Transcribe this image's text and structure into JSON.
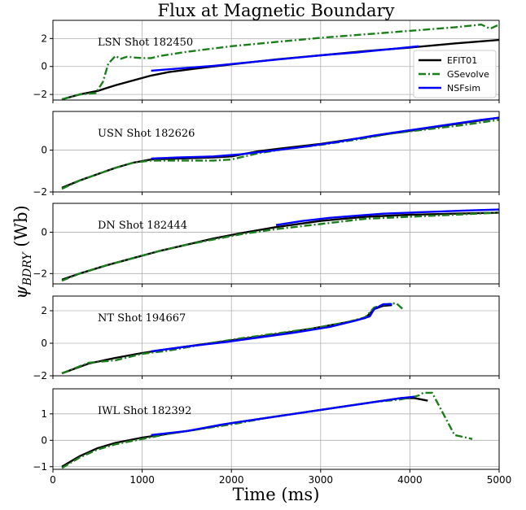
{
  "figure": {
    "title": "Flux at Magnetic Boundary",
    "xlabel": "Time (ms)",
    "ylabel_main": "ψ",
    "ylabel_sub": "BDRY",
    "ylabel_unit": " (Wb)"
  },
  "legend": {
    "placement": "top-right of first panel",
    "entries": [
      {
        "name": "EFIT01",
        "color": "#000000",
        "style": "solid"
      },
      {
        "name": "GSevolve",
        "color": "#1a7f1a",
        "style": "dashdot"
      },
      {
        "name": "NSFsim",
        "color": "#0000ff",
        "style": "solid"
      }
    ]
  },
  "chart_data": [
    {
      "type": "line",
      "label": "LSN Shot 182450",
      "xlim": [
        0,
        5000
      ],
      "ylim": [
        -2.4,
        3.3
      ],
      "yticks": [
        -2,
        0,
        2
      ],
      "xticks": [
        0,
        1000,
        2000,
        3000,
        4000,
        5000
      ],
      "grid": true,
      "series": [
        {
          "name": "EFIT01",
          "x": [
            100,
            300,
            500,
            700,
            900,
            1100,
            1300,
            1600,
            2000,
            2500,
            3000,
            3500,
            4000,
            4500,
            5000
          ],
          "y": [
            -2.35,
            -2.0,
            -1.75,
            -1.35,
            -1.0,
            -0.65,
            -0.4,
            -0.15,
            0.15,
            0.5,
            0.8,
            1.1,
            1.35,
            1.65,
            1.9
          ]
        },
        {
          "name": "GSevolve",
          "x": [
            100,
            300,
            480,
            560,
            620,
            700,
            760,
            830,
            900,
            1000,
            1100,
            1200,
            1500,
            2000,
            2500,
            3000,
            3500,
            4000,
            4500,
            4800,
            4900,
            5000
          ],
          "y": [
            -2.35,
            -2.0,
            -1.9,
            -1.1,
            0.2,
            0.75,
            0.55,
            0.7,
            0.65,
            0.6,
            0.6,
            0.75,
            1.05,
            1.45,
            1.75,
            2.05,
            2.3,
            2.55,
            2.8,
            3.0,
            2.7,
            3.0
          ]
        },
        {
          "name": "NSFsim",
          "x": [
            1100,
            1400,
            1800,
            2200,
            2600,
            3000,
            3400,
            3800,
            4100
          ],
          "y": [
            -0.3,
            -0.15,
            0.05,
            0.3,
            0.55,
            0.8,
            1.0,
            1.25,
            1.45
          ]
        }
      ]
    },
    {
      "type": "line",
      "label": "USN Shot 182626",
      "xlim": [
        0,
        5000
      ],
      "ylim": [
        -2.0,
        1.85
      ],
      "yticks": [
        -2,
        0
      ],
      "xticks": [
        0,
        1000,
        2000,
        3000,
        4000,
        5000
      ],
      "grid": true,
      "series": [
        {
          "name": "EFIT01",
          "x": [
            100,
            300,
            500,
            700,
            900,
            1100,
            1400,
            1800,
            2000,
            2300,
            2600,
            3000,
            3400,
            3800,
            4200,
            4600,
            5000
          ],
          "y": [
            -1.8,
            -1.45,
            -1.15,
            -0.85,
            -0.6,
            -0.45,
            -0.4,
            -0.35,
            -0.3,
            -0.05,
            0.1,
            0.3,
            0.55,
            0.8,
            1.05,
            1.3,
            1.55
          ]
        },
        {
          "name": "GSevolve",
          "x": [
            100,
            300,
            500,
            700,
            900,
            1100,
            1400,
            1800,
            2000,
            2300,
            2600,
            3000,
            3400,
            3800,
            4200,
            4600,
            5000
          ],
          "y": [
            -1.85,
            -1.45,
            -1.15,
            -0.85,
            -0.6,
            -0.5,
            -0.5,
            -0.5,
            -0.45,
            -0.15,
            0.05,
            0.25,
            0.5,
            0.8,
            1.0,
            1.2,
            1.45
          ]
        },
        {
          "name": "NSFsim",
          "x": [
            1100,
            1400,
            1800,
            2100,
            2400,
            2800,
            3200,
            3600,
            4000,
            4400,
            4800,
            5000
          ],
          "y": [
            -0.4,
            -0.35,
            -0.3,
            -0.2,
            -0.05,
            0.15,
            0.4,
            0.7,
            0.95,
            1.2,
            1.45,
            1.55
          ]
        }
      ]
    },
    {
      "type": "line",
      "label": "DN Shot 182444",
      "xlim": [
        0,
        5000
      ],
      "ylim": [
        -2.5,
        1.4
      ],
      "yticks": [
        -2,
        0
      ],
      "xticks": [
        0,
        1000,
        2000,
        3000,
        4000,
        5000
      ],
      "grid": true,
      "series": [
        {
          "name": "EFIT01",
          "x": [
            100,
            300,
            600,
            900,
            1200,
            1500,
            1800,
            2100,
            2500,
            3000,
            3500,
            4000,
            4500,
            5000
          ],
          "y": [
            -2.3,
            -2.0,
            -1.6,
            -1.25,
            -0.9,
            -0.6,
            -0.3,
            -0.05,
            0.25,
            0.55,
            0.75,
            0.85,
            0.9,
            0.95
          ]
        },
        {
          "name": "GSevolve",
          "x": [
            100,
            300,
            600,
            900,
            1200,
            1500,
            1800,
            2100,
            2500,
            3000,
            3500,
            4000,
            4500,
            5000
          ],
          "y": [
            -2.35,
            -2.0,
            -1.6,
            -1.25,
            -0.9,
            -0.6,
            -0.35,
            -0.1,
            0.15,
            0.4,
            0.65,
            0.75,
            0.85,
            0.95
          ]
        },
        {
          "name": "NSFsim",
          "x": [
            2500,
            2800,
            3100,
            3400,
            3700,
            4000,
            4300,
            4600,
            5000
          ],
          "y": [
            0.35,
            0.55,
            0.7,
            0.8,
            0.9,
            0.95,
            1.0,
            1.05,
            1.1
          ]
        }
      ]
    },
    {
      "type": "line",
      "label": "NT Shot 194667",
      "xlim": [
        0,
        5000
      ],
      "ylim": [
        -2.0,
        2.9
      ],
      "yticks": [
        -2,
        0,
        2
      ],
      "xticks": [
        0,
        1000,
        2000,
        3000,
        4000,
        5000
      ],
      "grid": true,
      "series": [
        {
          "name": "EFIT01",
          "x": [
            100,
            400,
            700,
            1000,
            1300,
            1700,
            2100,
            2500,
            2900,
            3300,
            3500,
            3600,
            3700,
            3800
          ],
          "y": [
            -1.85,
            -1.25,
            -0.9,
            -0.6,
            -0.35,
            -0.05,
            0.25,
            0.55,
            0.9,
            1.3,
            1.55,
            2.1,
            2.3,
            2.35
          ]
        },
        {
          "name": "GSevolve",
          "x": [
            100,
            400,
            700,
            1000,
            1300,
            1700,
            2100,
            2500,
            2900,
            3300,
            3500,
            3600,
            3700,
            3800,
            3850,
            3920
          ],
          "y": [
            -1.85,
            -1.2,
            -1.05,
            -0.65,
            -0.45,
            -0.05,
            0.3,
            0.6,
            0.9,
            1.3,
            1.6,
            2.2,
            2.35,
            2.45,
            2.45,
            2.1
          ]
        },
        {
          "name": "NSFsim",
          "x": [
            1100,
            1500,
            1900,
            2300,
            2700,
            3100,
            3400,
            3550,
            3600,
            3700,
            3800
          ],
          "y": [
            -0.5,
            -0.2,
            0.05,
            0.35,
            0.65,
            1.0,
            1.4,
            1.65,
            2.1,
            2.4,
            2.4
          ]
        }
      ]
    },
    {
      "type": "line",
      "label": "IWL Shot 182392",
      "xlim": [
        0,
        5000
      ],
      "ylim": [
        -1.1,
        1.95
      ],
      "yticks": [
        -1,
        0,
        1
      ],
      "xticks": [
        0,
        1000,
        2000,
        3000,
        4000,
        5000
      ],
      "xticklabels": [
        "0",
        "1000",
        "2000",
        "3000",
        "4000",
        "5000"
      ],
      "grid": true,
      "series": [
        {
          "name": "EFIT01",
          "x": [
            100,
            300,
            500,
            700,
            1000,
            1300,
            1600,
            2000,
            2400,
            2800,
            3200,
            3600,
            3900,
            4050,
            4200
          ],
          "y": [
            -1.0,
            -0.6,
            -0.3,
            -0.1,
            0.1,
            0.25,
            0.4,
            0.65,
            0.85,
            1.05,
            1.25,
            1.45,
            1.6,
            1.6,
            1.5
          ]
        },
        {
          "name": "GSevolve",
          "x": [
            100,
            300,
            500,
            700,
            1000,
            1300,
            1600,
            2000,
            2400,
            2800,
            3200,
            3600,
            3900,
            4050,
            4100,
            4150,
            4250,
            4500,
            4700
          ],
          "y": [
            -1.05,
            -0.65,
            -0.35,
            -0.15,
            0.05,
            0.25,
            0.4,
            0.6,
            0.85,
            1.05,
            1.25,
            1.45,
            1.55,
            1.65,
            1.7,
            1.8,
            1.8,
            0.2,
            0.05
          ]
        },
        {
          "name": "NSFsim",
          "x": [
            1100,
            1500,
            1900,
            2300,
            2700,
            3100,
            3500,
            3900,
            4050
          ],
          "y": [
            0.2,
            0.35,
            0.6,
            0.8,
            1.0,
            1.2,
            1.4,
            1.6,
            1.65
          ]
        }
      ]
    }
  ]
}
